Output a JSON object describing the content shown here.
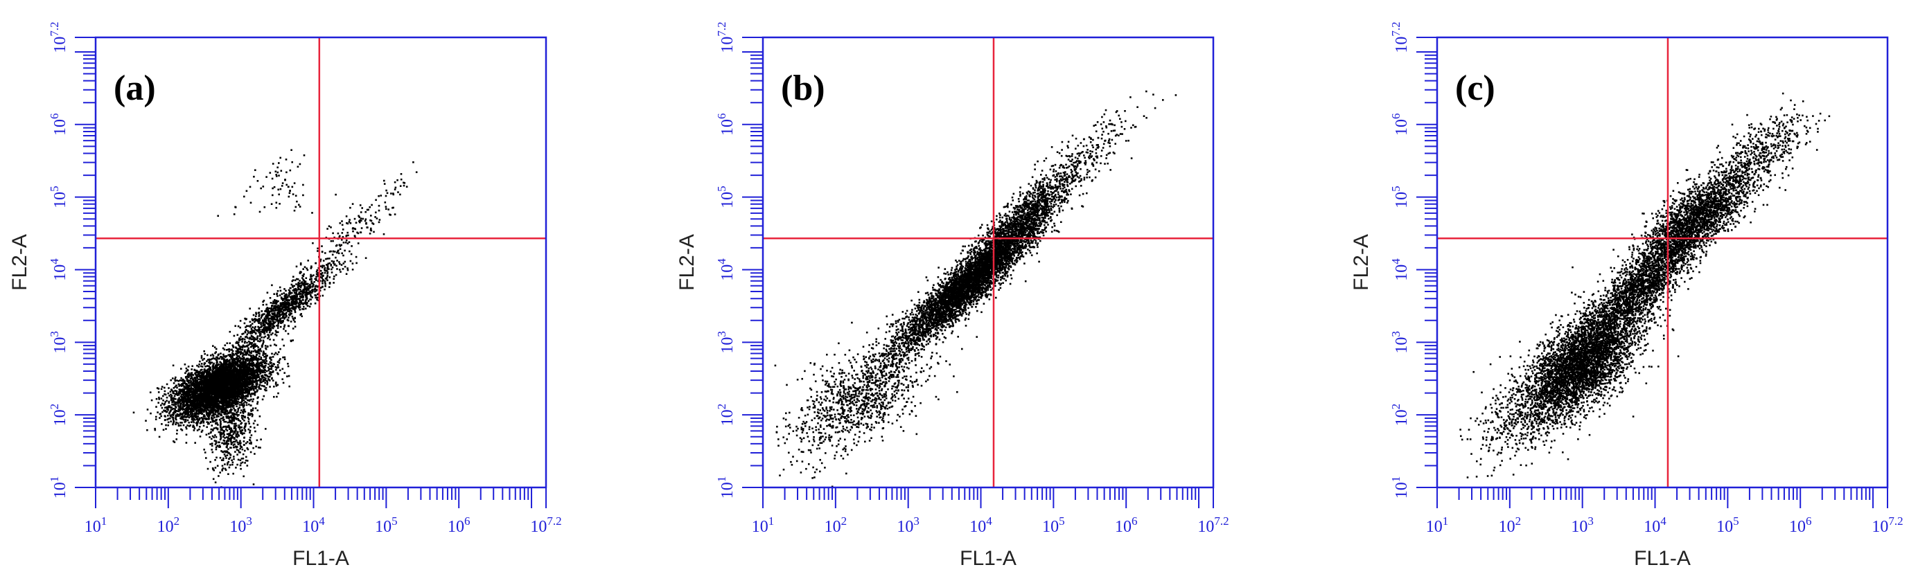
{
  "colors": {
    "axis": "#2020d8",
    "gate": "#e8243c",
    "points": "#000000",
    "axis_title": "#222222"
  },
  "chart_data": [
    {
      "type": "scatter",
      "panel_label": "(a)",
      "xlabel": "FL1-A",
      "ylabel": "FL2-A",
      "xscale": "log",
      "yscale": "log",
      "xlim": [
        10,
        15848932
      ],
      "ylim": [
        10,
        15848932
      ],
      "x_tick_labels": [
        "10^1",
        "10^2",
        "10^3",
        "10^4",
        "10^5",
        "10^6",
        "10^7.2"
      ],
      "y_tick_labels": [
        "10^1",
        "10^2",
        "10^3",
        "10^4",
        "10^5",
        "10^6",
        "10^7.2"
      ],
      "gate": {
        "x": 12000,
        "y": 27000
      },
      "clusters": [
        {
          "center": [
            500,
            250
          ],
          "spread": [
            0.32,
            0.22
          ],
          "rho": 0.55,
          "n": 5200
        },
        {
          "center": [
            4000,
            3200
          ],
          "spread": [
            0.35,
            0.3
          ],
          "rho": 0.9,
          "n": 1100
        },
        {
          "center": [
            700,
            60
          ],
          "spread": [
            0.16,
            0.26
          ],
          "rho": 0.0,
          "n": 500
        },
        {
          "center": [
            40000,
            40000
          ],
          "spread": [
            0.38,
            0.35
          ],
          "rho": 0.9,
          "n": 160
        },
        {
          "center": [
            3500,
            150000
          ],
          "spread": [
            0.28,
            0.2
          ],
          "rho": 0.2,
          "n": 70
        }
      ]
    },
    {
      "type": "scatter",
      "panel_label": "(b)",
      "xlabel": "FL1-A",
      "ylabel": "FL2-A",
      "xscale": "log",
      "yscale": "log",
      "xlim": [
        10,
        15848932
      ],
      "ylim": [
        10,
        15848932
      ],
      "x_tick_labels": [
        "10^1",
        "10^2",
        "10^3",
        "10^4",
        "10^5",
        "10^6",
        "10^7.2"
      ],
      "y_tick_labels": [
        "10^1",
        "10^2",
        "10^3",
        "10^4",
        "10^5",
        "10^6",
        "10^7.2"
      ],
      "gate": {
        "x": 15000,
        "y": 27000
      },
      "clusters": [
        {
          "center": [
            6000,
            6000
          ],
          "spread": [
            0.5,
            0.45
          ],
          "rho": 0.93,
          "n": 4200
        },
        {
          "center": [
            30000,
            40000
          ],
          "spread": [
            0.4,
            0.4
          ],
          "rho": 0.9,
          "n": 1500
        },
        {
          "center": [
            250,
            200
          ],
          "spread": [
            0.45,
            0.35
          ],
          "rho": 0.5,
          "n": 900
        },
        {
          "center": [
            200000,
            300000
          ],
          "spread": [
            0.45,
            0.4
          ],
          "rho": 0.85,
          "n": 260
        },
        {
          "center": [
            60,
            60
          ],
          "spread": [
            0.3,
            0.3
          ],
          "rho": 0.3,
          "n": 120
        }
      ]
    },
    {
      "type": "scatter",
      "panel_label": "(c)",
      "xlabel": "FL1-A",
      "ylabel": "FL2-A",
      "xscale": "log",
      "yscale": "log",
      "xlim": [
        10,
        15848932
      ],
      "ylim": [
        10,
        15848932
      ],
      "x_tick_labels": [
        "10^1",
        "10^2",
        "10^3",
        "10^4",
        "10^5",
        "10^6",
        "10^7.2"
      ],
      "y_tick_labels": [
        "10^1",
        "10^2",
        "10^3",
        "10^4",
        "10^5",
        "10^6",
        "10^7.2"
      ],
      "gate": {
        "x": 15000,
        "y": 27000
      },
      "clusters": [
        {
          "center": [
            900,
            500
          ],
          "spread": [
            0.42,
            0.42
          ],
          "rho": 0.65,
          "n": 4200
        },
        {
          "center": [
            8000,
            8000
          ],
          "spread": [
            0.4,
            0.4
          ],
          "rho": 0.85,
          "n": 2000
        },
        {
          "center": [
            40000,
            60000
          ],
          "spread": [
            0.4,
            0.32
          ],
          "rho": 0.75,
          "n": 1900
        },
        {
          "center": [
            250000,
            400000
          ],
          "spread": [
            0.35,
            0.28
          ],
          "rho": 0.7,
          "n": 500
        },
        {
          "center": [
            100,
            80
          ],
          "spread": [
            0.3,
            0.3
          ],
          "rho": 0.3,
          "n": 200
        }
      ]
    }
  ]
}
